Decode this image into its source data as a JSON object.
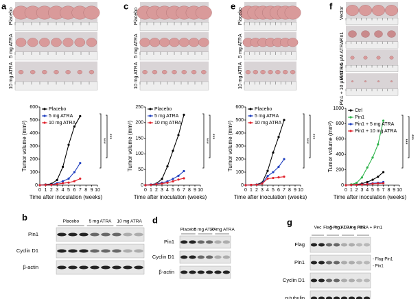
{
  "chart_data": [
    {
      "type": "line",
      "y_label": "Tumor volume (mm³)",
      "x_label": "Time after  inoculation (weeks)",
      "x": [
        0,
        1,
        2,
        3,
        4,
        5,
        6,
        7
      ],
      "xlim": [
        0,
        10
      ],
      "xticks": [
        0,
        1,
        2,
        3,
        4,
        5,
        6,
        7,
        8,
        9,
        10
      ],
      "ylim": [
        0,
        600
      ],
      "yticks": [
        0,
        100,
        200,
        300,
        400,
        500,
        600
      ],
      "series": [
        {
          "name": "Placebo",
          "color": "#000000",
          "values": [
            0,
            5,
            10,
            40,
            140,
            310,
            450,
            530
          ]
        },
        {
          "name": "5 mg ATRA",
          "color": "#1f3fbf",
          "values": [
            0,
            3,
            5,
            15,
            30,
            50,
            100,
            170
          ]
        },
        {
          "name": "10 mg ATRA",
          "color": "#e0202a",
          "values": [
            0,
            2,
            3,
            8,
            15,
            20,
            30,
            50
          ]
        }
      ],
      "annotations": [
        "***",
        "***"
      ]
    },
    {
      "type": "line",
      "y_label": "Tumor volume (mm³)",
      "x_label": "Time after  inoculation (weeks)",
      "x": [
        0,
        1,
        2,
        3,
        4,
        5,
        6,
        7
      ],
      "xlim": [
        0,
        10
      ],
      "xticks": [
        0,
        1,
        2,
        3,
        4,
        5,
        6,
        7,
        8,
        9,
        10
      ],
      "ylim": [
        0,
        250
      ],
      "yticks": [
        0,
        50,
        100,
        150,
        200,
        250
      ],
      "series": [
        {
          "name": "Placebo",
          "color": "#000000",
          "values": [
            0,
            2,
            5,
            20,
            60,
            110,
            160,
            225
          ]
        },
        {
          "name": "5 mg ATRA",
          "color": "#1f3fbf",
          "values": [
            0,
            2,
            4,
            8,
            12,
            20,
            30,
            45
          ]
        },
        {
          "name": "10 mg ATRA",
          "color": "#e0202a",
          "values": [
            0,
            1,
            3,
            5,
            8,
            12,
            18,
            22
          ]
        }
      ],
      "annotations": [
        "***",
        "***"
      ]
    },
    {
      "type": "line",
      "y_label": "Tumor volume (mm³)",
      "x_label": "Time after  inoculation (weeks)",
      "x": [
        0,
        1,
        2,
        3,
        4,
        5,
        6,
        7
      ],
      "xlim": [
        0,
        10
      ],
      "xticks": [
        0,
        1,
        2,
        3,
        4,
        5,
        6,
        7,
        8,
        9,
        10
      ],
      "ylim": [
        0,
        600
      ],
      "yticks": [
        0,
        100,
        200,
        300,
        400,
        500,
        600
      ],
      "series": [
        {
          "name": "Placebo",
          "color": "#000000",
          "values": [
            0,
            2,
            5,
            20,
            110,
            250,
            370,
            500
          ]
        },
        {
          "name": "5 mg ATRA",
          "color": "#1f3fbf",
          "values": [
            0,
            2,
            4,
            15,
            70,
            100,
            140,
            200
          ]
        },
        {
          "name": "10 mg ATRA",
          "color": "#e0202a",
          "values": [
            0,
            2,
            3,
            12,
            50,
            55,
            60,
            65
          ]
        }
      ],
      "annotations": [
        "***",
        "***"
      ]
    },
    {
      "type": "line",
      "y_label": "Tumor volume (mm³)",
      "x_label": "Time after  inoculation (weeks)",
      "x": [
        0,
        1,
        2,
        3,
        4,
        5,
        6,
        7
      ],
      "xlim": [
        0,
        10
      ],
      "xticks": [
        0,
        1,
        2,
        3,
        4,
        5,
        6,
        7,
        8,
        9,
        10
      ],
      "ylim": [
        0,
        1000
      ],
      "yticks": [
        0,
        200,
        400,
        600,
        800,
        1000
      ],
      "series": [
        {
          "name": "Ctrl",
          "color": "#000000",
          "values": [
            0,
            5,
            10,
            20,
            40,
            70,
            110,
            170
          ]
        },
        {
          "name": "Pin1",
          "color": "#2db34a",
          "values": [
            0,
            10,
            30,
            100,
            230,
            360,
            530,
            840
          ]
        },
        {
          "name": "Pin1 + 5 mg ATRA",
          "color": "#1f3fbf",
          "values": [
            0,
            3,
            6,
            10,
            15,
            25,
            30,
            40
          ]
        },
        {
          "name": "Pin1 + 10 mg ATRA",
          "color": "#e0202a",
          "values": [
            0,
            3,
            5,
            8,
            12,
            18,
            22,
            25
          ]
        }
      ],
      "annotations": [
        "***",
        "***"
      ]
    }
  ],
  "figure": {
    "panels": [
      "a",
      "b",
      "c",
      "d",
      "e",
      "f",
      "g"
    ],
    "photos": [
      [
        "Placebo",
        "5 mg ATRA",
        "10 mg ATRA"
      ],
      [
        "Placebo",
        "5 mg ATRA",
        "10 mg ATRA"
      ],
      [
        "Placebo",
        "5 mg ATRA",
        "10 mg ATRA"
      ],
      [
        "Vector",
        "Pin1",
        "Pin1 + 5 μM ATRA",
        "Pin1 + 10 μM ATRA"
      ]
    ],
    "blots": [
      {
        "groups": [
          "Placebo",
          "5 mg ATRA",
          "10 mg ATRA"
        ],
        "rows": [
          "Pin1",
          "Cyclin D1",
          "β-actin"
        ]
      },
      {
        "groups": [
          "Placebo",
          "5 mg ATRA",
          "10 mg ATRA"
        ],
        "rows": [
          "Pin1",
          "Cyclin D1",
          "β-actin"
        ]
      },
      {
        "groups": [
          "Vec",
          "Flag-Pin1",
          "5 mg ATRA + Pin1",
          "10 mg ATRA + Pin1"
        ],
        "rows": [
          "Flag",
          "Pin1",
          "Cyclin D1",
          "α-tubulin"
        ],
        "markers": [
          "- Flag-Pin1",
          "- Pin1"
        ]
      }
    ]
  }
}
